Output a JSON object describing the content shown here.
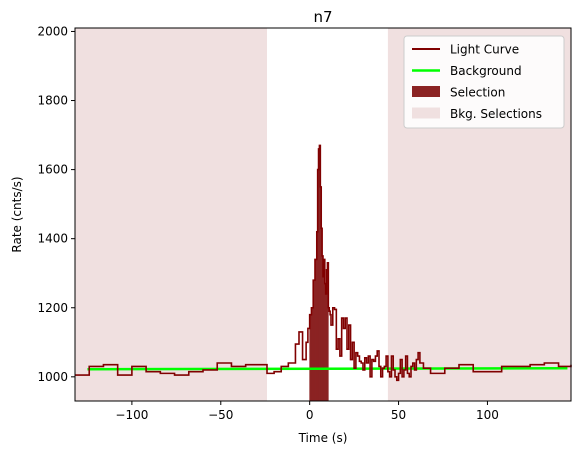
{
  "chart_data": {
    "type": "line",
    "title": "n7",
    "xlabel": "Time (s)",
    "ylabel": "Rate (cnts/s)",
    "xlim": [
      -132,
      147
    ],
    "ylim": [
      930,
      2010
    ],
    "xticks": [
      -100,
      -50,
      0,
      50,
      100
    ],
    "yticks": [
      1000,
      1200,
      1400,
      1600,
      1800,
      2000
    ],
    "legend_position": "top-right",
    "legend": [
      {
        "label": "Light Curve",
        "kind": "line",
        "color": "#800000"
      },
      {
        "label": "Background",
        "kind": "line",
        "color": "#00ff00"
      },
      {
        "label": "Selection",
        "kind": "patch",
        "color": "#8b2323"
      },
      {
        "label": "Bkg. Selections",
        "kind": "patch",
        "color": "#f0e0e0"
      }
    ],
    "background": {
      "x": [
        -125,
        145
      ],
      "y": [
        1022,
        1025
      ],
      "color": "#00ff00"
    },
    "selection": {
      "x": [
        0,
        10.5
      ],
      "color": "#8b2323"
    },
    "bkg_selections": [
      [
        -132,
        -24
      ],
      [
        44,
        147
      ]
    ],
    "light_curve": {
      "color": "#800000",
      "edges": [
        -132,
        -124,
        -116,
        -108,
        -100,
        -92,
        -84,
        -76,
        -68,
        -60,
        -52,
        -44,
        -36,
        -28,
        -24,
        -20,
        -16,
        -12,
        -8,
        -6,
        -4,
        -2,
        -1,
        0,
        1,
        2,
        3,
        4,
        4.5,
        5,
        5.5,
        6,
        6.5,
        7,
        7.5,
        8,
        8.5,
        9,
        9.5,
        10,
        10.5,
        11,
        11.5,
        12,
        13,
        14,
        15,
        16,
        17,
        18,
        19,
        20,
        21,
        22,
        23,
        24,
        25,
        26,
        27,
        28,
        29,
        30,
        31,
        32,
        33,
        34,
        35,
        36,
        37,
        38,
        39,
        40,
        41,
        42,
        43,
        44,
        45,
        46,
        47,
        48,
        49,
        50,
        51,
        52,
        53,
        54,
        55,
        56,
        57,
        58,
        59,
        60,
        61,
        62,
        64,
        68,
        76,
        84,
        92,
        100,
        108,
        116,
        124,
        132,
        140,
        147
      ],
      "values": [
        1005,
        1030,
        1035,
        1005,
        1030,
        1015,
        1010,
        1005,
        1015,
        1020,
        1040,
        1030,
        1035,
        1035,
        1010,
        1015,
        1030,
        1040,
        1095,
        1130,
        1050,
        1100,
        1140,
        1180,
        1200,
        1280,
        1340,
        1420,
        1600,
        1660,
        1670,
        1550,
        1430,
        1350,
        1290,
        1340,
        1270,
        1240,
        1310,
        1330,
        1200,
        1190,
        1180,
        1150,
        1200,
        1195,
        1080,
        1110,
        1060,
        1170,
        1140,
        1170,
        1080,
        1150,
        1050,
        1100,
        1025,
        1070,
        1060,
        1045,
        1040,
        1020,
        1055,
        1040,
        1060,
        1000,
        1050,
        1045,
        1060,
        1075,
        1030,
        1000,
        1025,
        1030,
        1060,
        1015,
        1000,
        1060,
        1020,
        1000,
        990,
        1010,
        1050,
        1000,
        1020,
        1060,
        1010,
        1000,
        1030,
        1040,
        1020,
        1050,
        1070,
        1040,
        1025,
        1010,
        1025,
        1035,
        1015,
        1015,
        1030,
        1030,
        1035,
        1040,
        1030,
        1035
      ]
    }
  }
}
